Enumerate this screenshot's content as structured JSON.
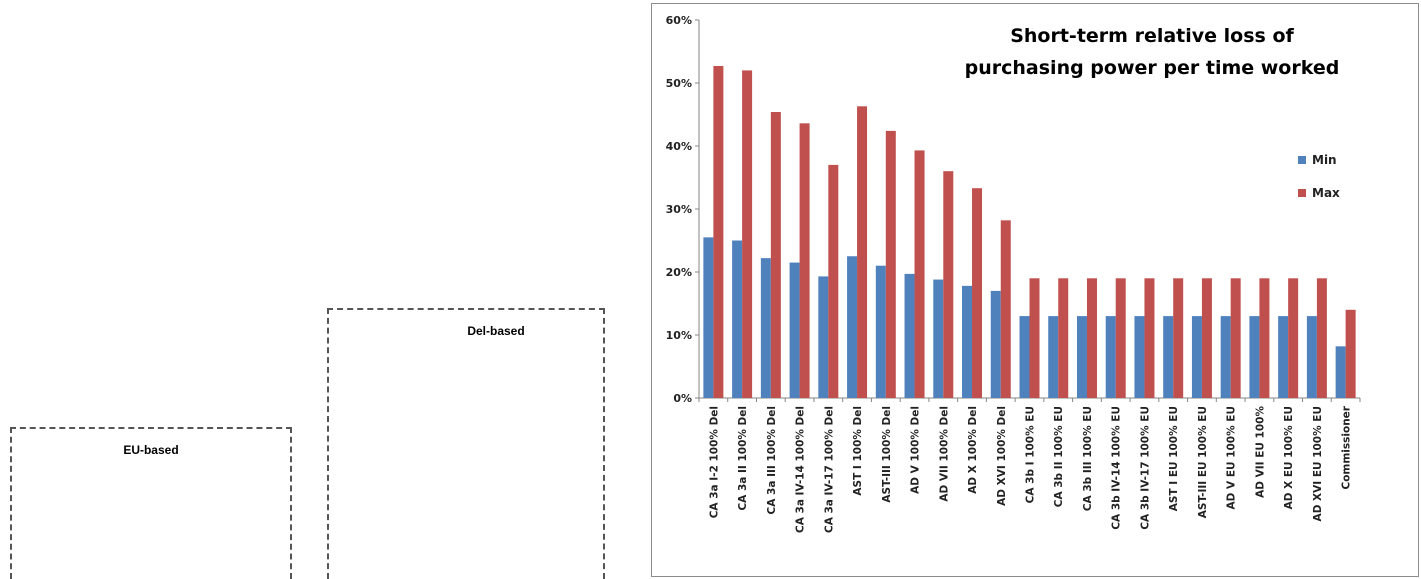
{
  "boxes": {
    "del_label": "Del-based",
    "eu_label": "EU-based"
  },
  "colors": {
    "min": "#4f81bd",
    "max": "#c0504d",
    "axis": "#868686"
  },
  "chart_data": {
    "type": "bar",
    "title_lines": [
      "Short-term  relative  loss of",
      "purchasing  power per time worked"
    ],
    "ylim": [
      0,
      60
    ],
    "yticks": [
      0,
      10,
      20,
      30,
      40,
      50,
      60
    ],
    "ytick_labels": [
      "0%",
      "10%",
      "20%",
      "30%",
      "40%",
      "50%",
      "60%"
    ],
    "legend_position": "right",
    "categories": [
      "CA 3a I-2 100% Del",
      "CA 3a II  100% Del",
      "CA  3a III 100% Del",
      "CA 3a IV-14  100% Del",
      "CA 3a IV-17  100% Del",
      "AST  I 100% Del",
      "AST-III  100% Del",
      "AD V  100% Del",
      "AD VII 100% Del",
      "AD X 100% Del",
      "AD XVI 100% Del",
      "CA 3b I 100% EU",
      "CA 3b II 100% EU",
      "CA 3b III 100% EU",
      "CA 3b IV-14 100% EU",
      "CA 3b IV-17 100% EU",
      "AST  I EU  100% EU",
      "AST-III EU  100% EU",
      "AD V EU  100% EU",
      "AD VII EU 100%",
      "AD X EU  100% EU",
      "AD XVI EU  100% EU",
      "Commissioner"
    ],
    "series": [
      {
        "name": "Min",
        "values": [
          25.5,
          25,
          22.2,
          21.5,
          19.3,
          22.5,
          21,
          19.7,
          18.8,
          17.8,
          17,
          13,
          13,
          13,
          13,
          13,
          13,
          13,
          13,
          13,
          13,
          13,
          8.2
        ]
      },
      {
        "name": "Max",
        "values": [
          52.7,
          52,
          45.4,
          43.6,
          37,
          46.3,
          42.4,
          39.3,
          36,
          33.3,
          28.2,
          19,
          19,
          19,
          19,
          19,
          19,
          19,
          19,
          19,
          19,
          19,
          14
        ]
      }
    ]
  }
}
